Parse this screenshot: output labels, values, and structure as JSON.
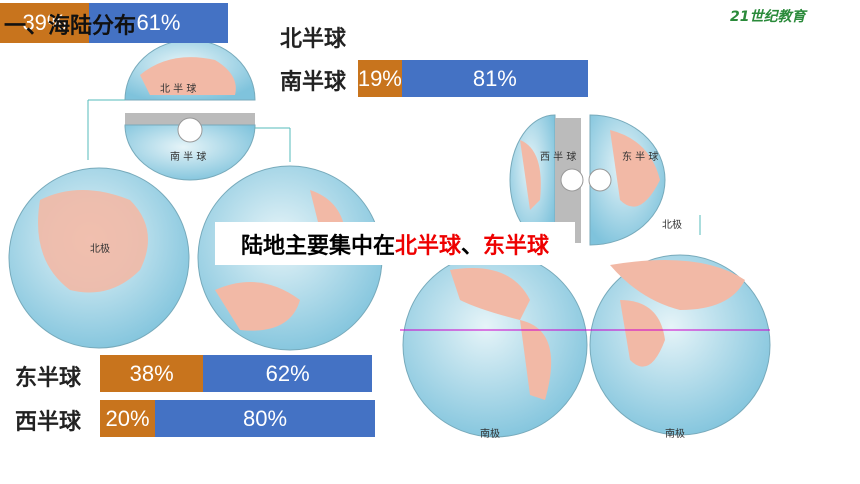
{
  "header": {
    "title": "一、海陆分布",
    "logo": "21世纪教育"
  },
  "top_bar": {
    "segments": [
      {
        "label": "39%",
        "value": 39
      },
      {
        "label": "61%",
        "value": 61
      }
    ]
  },
  "north": {
    "label": "北半球"
  },
  "south": {
    "label": "南半球",
    "segments": [
      {
        "label": "19%",
        "value": 19
      },
      {
        "label": "81%",
        "value": 81
      }
    ]
  },
  "east": {
    "label": "东半球",
    "segments": [
      {
        "label": "38%",
        "value": 38
      },
      {
        "label": "62%",
        "value": 62
      }
    ]
  },
  "west": {
    "label": "西半球",
    "segments": [
      {
        "label": "20%",
        "value": 20
      },
      {
        "label": "80%",
        "value": 80
      }
    ]
  },
  "banner": {
    "prefix": "陆地主要集中在",
    "north": "北半球",
    "sep": "、",
    "east": "东半球"
  },
  "globes": {
    "north_half": "北 半 球",
    "south_half": "南 半 球",
    "north_pole": "北极",
    "west_half": "西 半 球",
    "east_half": "东 半 球",
    "south_pole_w": "南极",
    "south_pole_e": "南极",
    "north_pole_e": "北极"
  }
}
